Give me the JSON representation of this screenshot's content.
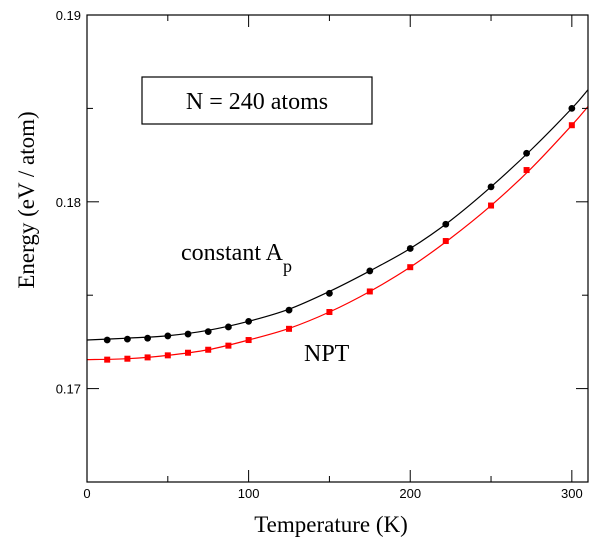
{
  "chart_data": {
    "type": "line",
    "title": "",
    "xlabel": "Temperature  (K)",
    "ylabel": "Energy  (eV / atom)",
    "xlim": [
      0,
      310
    ],
    "ylim": [
      0.165,
      0.19
    ],
    "x_ticks": [
      0,
      100,
      200,
      300
    ],
    "x_tick_labels": [
      "0",
      "100",
      "200",
      "300"
    ],
    "y_ticks": [
      0.17,
      0.18,
      0.19
    ],
    "y_tick_labels": [
      "0.17",
      "0.18",
      "0.19"
    ],
    "grid": false,
    "legend": "none",
    "annotations": {
      "box_label": "N = 240 atoms",
      "series_label_constant": "constant  A",
      "series_label_constant_sub": "p",
      "series_label_npt": "NPT"
    },
    "series": [
      {
        "key": "constant_ap",
        "color": "#000000",
        "marker": "circle",
        "x": [
          12.5,
          25,
          37.5,
          50,
          62.5,
          75,
          87.5,
          100,
          125,
          150,
          175,
          200,
          222,
          250,
          272,
          300
        ],
        "y": [
          0.1726,
          0.17265,
          0.1727,
          0.17282,
          0.17292,
          0.17305,
          0.1733,
          0.1736,
          0.1742,
          0.1751,
          0.1763,
          0.1775,
          0.1788,
          0.1808,
          0.1826,
          0.185
        ],
        "curve_x": [
          0,
          25,
          50,
          75,
          100,
          125,
          150,
          175,
          200,
          225,
          250,
          275,
          300,
          310
        ],
        "curve_y": [
          0.1726,
          0.1727,
          0.17283,
          0.17312,
          0.1736,
          0.17425,
          0.1752,
          0.1763,
          0.1775,
          0.179,
          0.1808,
          0.1828,
          0.185,
          0.186
        ]
      },
      {
        "key": "npt",
        "color": "#ff0000",
        "marker": "square",
        "x": [
          12.5,
          25,
          37.5,
          50,
          62.5,
          75,
          87.5,
          100,
          125,
          150,
          175,
          200,
          222,
          250,
          272,
          300
        ],
        "y": [
          0.17155,
          0.1716,
          0.17167,
          0.17178,
          0.17192,
          0.17208,
          0.1723,
          0.1726,
          0.1732,
          0.1741,
          0.1752,
          0.1765,
          0.1779,
          0.1798,
          0.1817,
          0.1841
        ],
        "curve_x": [
          0,
          25,
          50,
          75,
          100,
          125,
          150,
          175,
          200,
          225,
          250,
          275,
          300,
          310
        ],
        "curve_y": [
          0.17155,
          0.1716,
          0.17178,
          0.17208,
          0.1726,
          0.17322,
          0.1741,
          0.1752,
          0.1765,
          0.17805,
          0.1798,
          0.1818,
          0.1841,
          0.1851
        ]
      }
    ]
  }
}
